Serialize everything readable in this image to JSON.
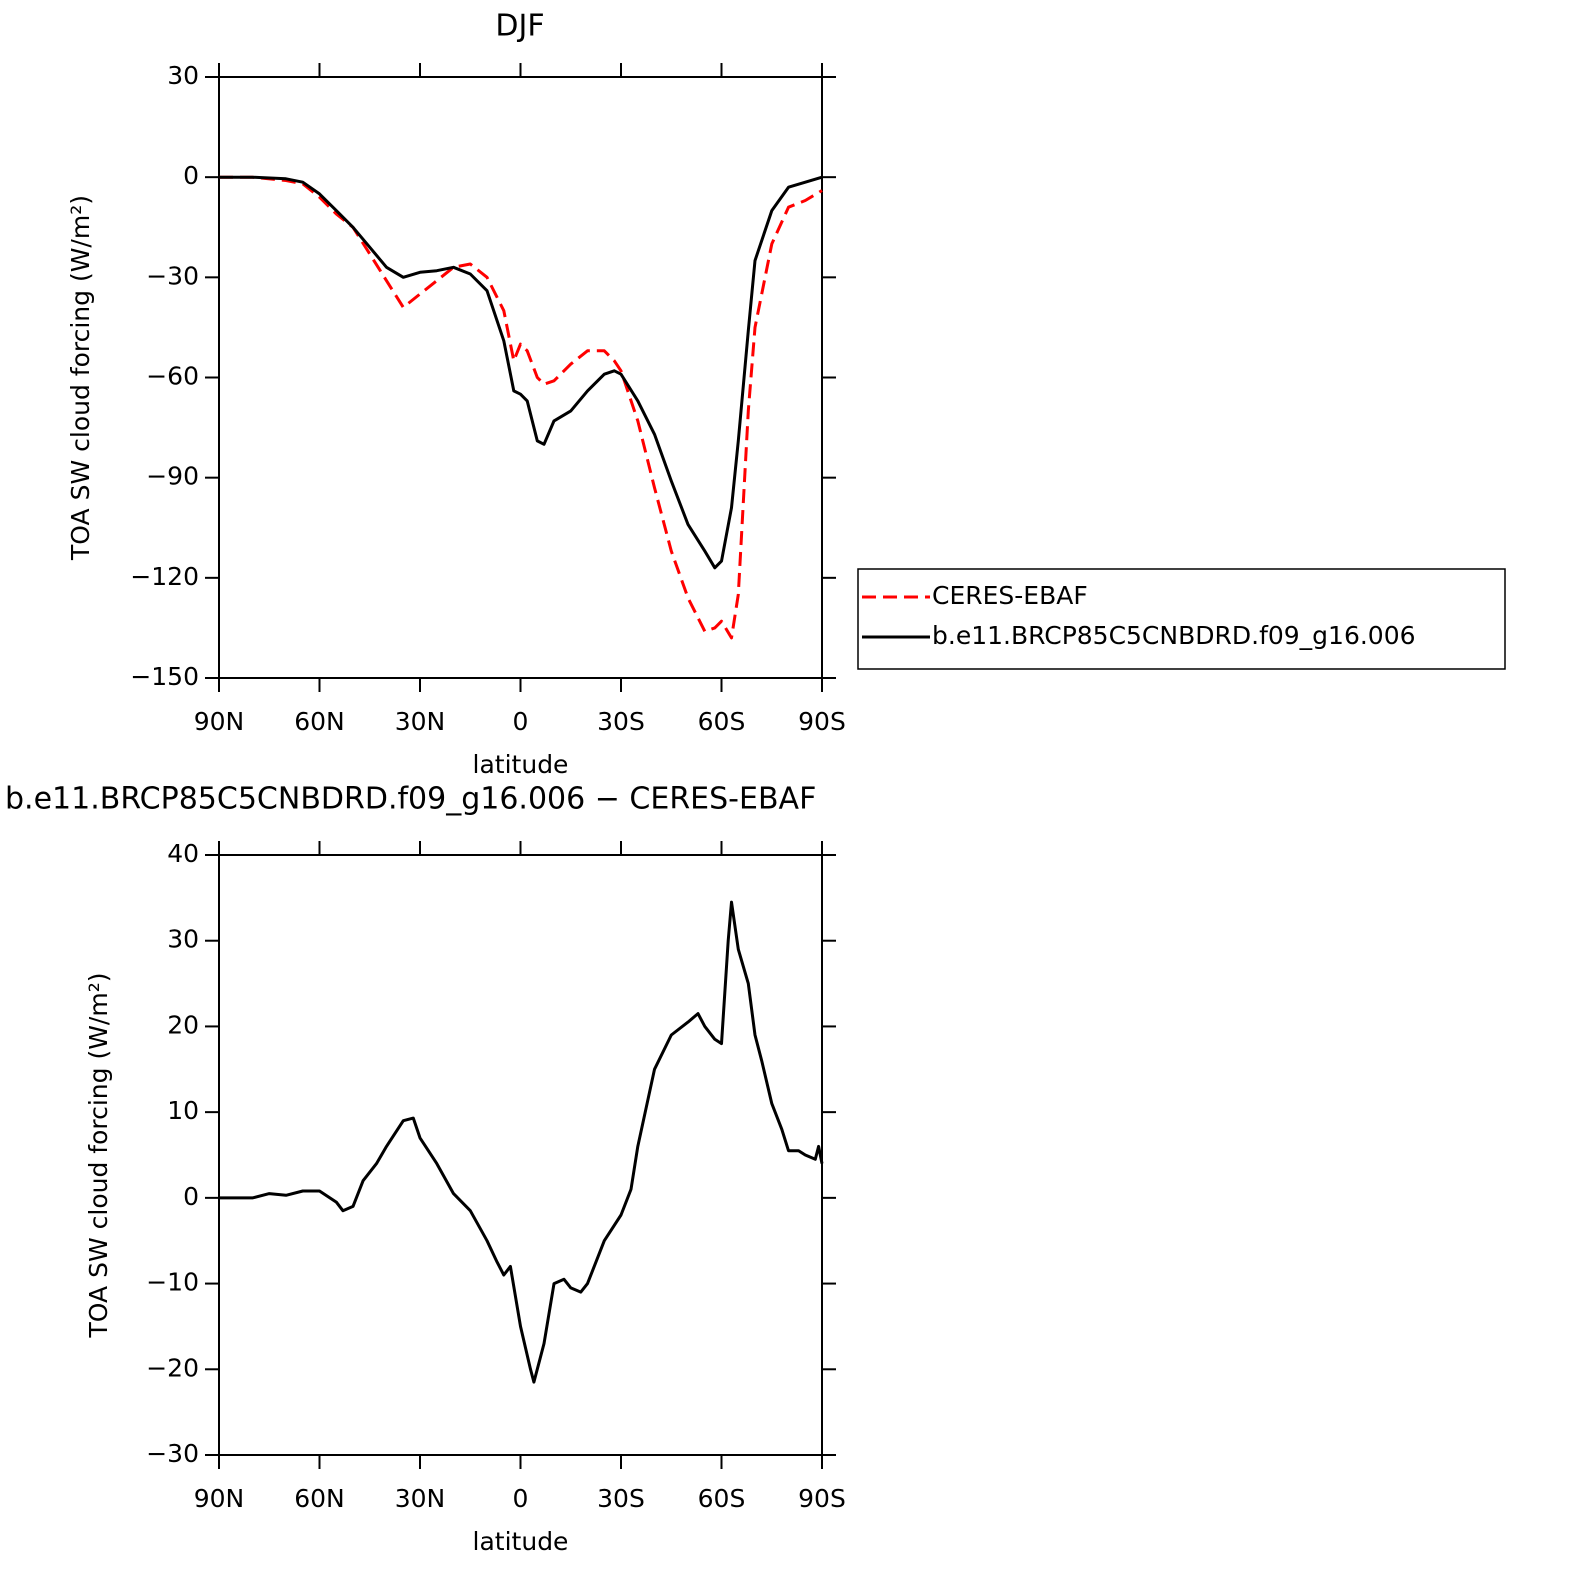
{
  "chart_data": [
    {
      "type": "line",
      "title": "DJF",
      "xlabel": "latitude",
      "ylabel": "TOA SW cloud forcing (W/m²)",
      "x": [
        90,
        80,
        70,
        65,
        60,
        55,
        50,
        45,
        40,
        35,
        30,
        25,
        20,
        15,
        10,
        5,
        2,
        0,
        -2,
        -5,
        -7,
        -10,
        -15,
        -20,
        -25,
        -28,
        -30,
        -35,
        -40,
        -45,
        -50,
        -55,
        -58,
        -60,
        -63,
        -65,
        -68,
        -70,
        -75,
        -80,
        -85,
        -90
      ],
      "series": [
        {
          "name": "CERES-EBAF",
          "color": "#ff0000",
          "linestyle": "dashed",
          "values": [
            0,
            0,
            -1,
            -2,
            -6,
            -11,
            -15,
            -23,
            -31,
            -39,
            -35,
            -31,
            -27,
            -26,
            -30,
            -40,
            -55,
            -50,
            -52,
            -60,
            -62,
            -61,
            -56,
            -52,
            -52,
            -55,
            -58,
            -73,
            -93,
            -112,
            -126,
            -136,
            -135,
            -133,
            -138,
            -125,
            -70,
            -45,
            -20,
            -9,
            -7,
            -4
          ]
        },
        {
          "name": "b.e11.BRCP85C5CNBDRD.f09_g16.006",
          "color": "#000000",
          "linestyle": "solid",
          "values": [
            0,
            0,
            -0.5,
            -1.5,
            -5,
            -10,
            -15,
            -21,
            -27,
            -30,
            -28.5,
            -28,
            -27,
            -29,
            -34,
            -49,
            -64,
            -65,
            -67,
            -79,
            -80,
            -73,
            -70,
            -64,
            -59,
            -58,
            -59,
            -67,
            -77,
            -91,
            -104,
            -112,
            -117,
            -115,
            -99,
            -79,
            -46,
            -25,
            -10,
            -3,
            -1.5,
            0
          ]
        }
      ],
      "xlim": [
        90,
        -90
      ],
      "xticks": [
        {
          "value": 90,
          "label": "90N"
        },
        {
          "value": 60,
          "label": "60N"
        },
        {
          "value": 30,
          "label": "30N"
        },
        0,
        {
          "value": -30,
          "label": "30S"
        },
        {
          "value": -60,
          "label": "60S"
        },
        {
          "value": -90,
          "label": "90S"
        }
      ],
      "ylim": [
        -150,
        30
      ],
      "yticks": [
        {
          "value": -150,
          "label": "−150"
        },
        {
          "value": -120,
          "label": "−120"
        },
        {
          "value": -90,
          "label": "−90"
        },
        {
          "value": -60,
          "label": "−60"
        },
        {
          "value": -30,
          "label": "−30"
        },
        0,
        30
      ],
      "legend": "right"
    },
    {
      "type": "line",
      "title": "b.e11.BRCP85C5CNBDRD.f09_g16.006 − CERES-EBAF",
      "xlabel": "latitude",
      "ylabel": "TOA SW cloud forcing (W/m²)",
      "x": [
        90,
        80,
        75,
        70,
        65,
        60,
        55,
        53,
        50,
        47,
        43,
        40,
        35,
        32,
        30,
        25,
        20,
        15,
        10,
        7,
        5,
        3,
        0,
        -3,
        -4,
        -7,
        -10,
        -13,
        -15,
        -18,
        -20,
        -25,
        -30,
        -33,
        -35,
        -40,
        -45,
        -50,
        -53,
        -55,
        -58,
        -60,
        -62,
        -63,
        -65,
        -68,
        -70,
        -72,
        -75,
        -78,
        -80,
        -83,
        -85,
        -88,
        -89,
        -90
      ],
      "values": [
        0,
        0,
        0.5,
        0.3,
        0.8,
        0.8,
        -0.5,
        -1.5,
        -1,
        2,
        4,
        6,
        9,
        9.3,
        7,
        4,
        0.5,
        -1.5,
        -5,
        -7.5,
        -9,
        -8,
        -15,
        -20,
        -21.5,
        -17,
        -10,
        -9.5,
        -10.5,
        -11,
        -10,
        -5,
        -2,
        1,
        6,
        15,
        19,
        20.5,
        21.5,
        20,
        18.5,
        18,
        30,
        34.5,
        29,
        25,
        19,
        16,
        11,
        8,
        5.5,
        5.5,
        5,
        4.5,
        6,
        4
      ],
      "color": "#000000",
      "xlim": [
        90,
        -90
      ],
      "xticks": [
        {
          "value": 90,
          "label": "90N"
        },
        {
          "value": 60,
          "label": "60N"
        },
        {
          "value": 30,
          "label": "30N"
        },
        0,
        {
          "value": -30,
          "label": "30S"
        },
        {
          "value": -60,
          "label": "60S"
        },
        {
          "value": -90,
          "label": "90S"
        }
      ],
      "ylim": [
        -30,
        40
      ],
      "yticks": [
        {
          "value": -30,
          "label": "−30"
        },
        {
          "value": -20,
          "label": "−20"
        },
        {
          "value": -10,
          "label": "−10"
        },
        0,
        10,
        20,
        30,
        40
      ]
    }
  ]
}
